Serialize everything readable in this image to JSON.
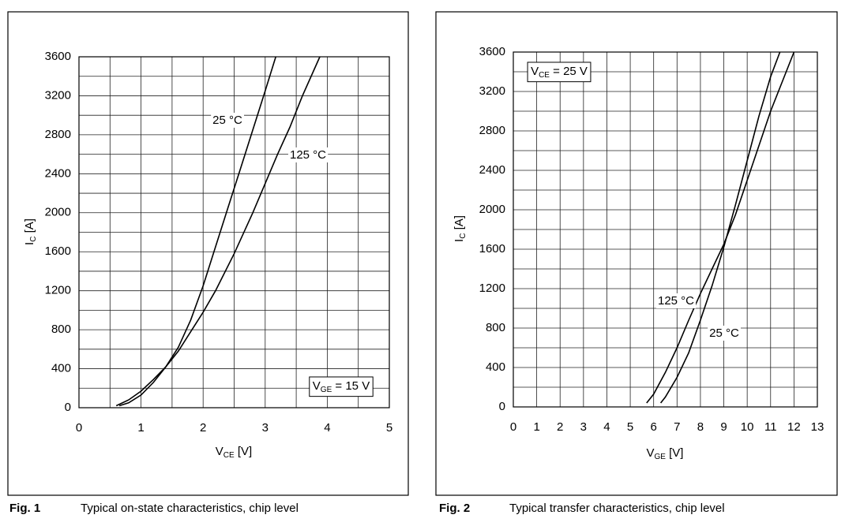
{
  "chart_data": [
    {
      "type": "line",
      "figure_label": "Fig. 1",
      "caption": "Typical on-state characteristics, chip level",
      "xlabel": [
        "V",
        "CE",
        " [V]"
      ],
      "ylabel": [
        "I",
        "C",
        " [A]"
      ],
      "xlim": [
        0,
        5
      ],
      "xticks": [
        0,
        1,
        2,
        3,
        4,
        5
      ],
      "ylim": [
        0,
        3600
      ],
      "yticks": [
        0,
        400,
        800,
        1200,
        1600,
        2000,
        2400,
        2800,
        3200,
        3600
      ],
      "grid": true,
      "minor_grid": [
        "x",
        "y"
      ],
      "annotations": [
        [
          "V",
          "GE",
          " = 15 V"
        ]
      ],
      "series": [
        {
          "name": "25 °C",
          "color": "#000000",
          "x": [
            0.65,
            0.8,
            1.0,
            1.2,
            1.4,
            1.6,
            1.8,
            2.0,
            2.2,
            2.4,
            2.6,
            2.8,
            3.0,
            3.17
          ],
          "values": [
            20,
            50,
            130,
            260,
            420,
            620,
            900,
            1250,
            1650,
            2050,
            2450,
            2850,
            3250,
            3600
          ]
        },
        {
          "name": "125 °C",
          "color": "#000000",
          "x": [
            0.6,
            0.8,
            1.0,
            1.2,
            1.4,
            1.6,
            1.8,
            2.0,
            2.2,
            2.5,
            2.8,
            3.0,
            3.2,
            3.4,
            3.6,
            3.88
          ],
          "values": [
            20,
            80,
            170,
            290,
            420,
            580,
            780,
            980,
            1200,
            1580,
            2000,
            2300,
            2600,
            2880,
            3200,
            3600
          ]
        }
      ]
    },
    {
      "type": "line",
      "figure_label": "Fig. 2",
      "caption": "Typical transfer characteristics, chip level",
      "xlabel": [
        "V",
        "GE",
        "  [V]"
      ],
      "ylabel": [
        "I",
        "C",
        " [A]"
      ],
      "xlim": [
        0,
        13
      ],
      "xticks": [
        0,
        1,
        2,
        3,
        4,
        5,
        6,
        7,
        8,
        9,
        10,
        11,
        12,
        13
      ],
      "ylim": [
        0,
        3600
      ],
      "yticks": [
        0,
        400,
        800,
        1200,
        1600,
        2000,
        2400,
        2800,
        3200,
        3600
      ],
      "grid": true,
      "minor_grid": [
        "y"
      ],
      "annotations": [
        [
          "V",
          "CE",
          " = 25 V"
        ]
      ],
      "series": [
        {
          "name": "25 °C",
          "color": "#000000",
          "x": [
            6.3,
            6.5,
            7.0,
            7.5,
            8.0,
            8.5,
            9.0,
            9.5,
            10.0,
            10.5,
            11.0,
            11.4
          ],
          "values": [
            40,
            100,
            300,
            550,
            880,
            1230,
            1620,
            2050,
            2500,
            2950,
            3350,
            3600
          ]
        },
        {
          "name": "125 °C",
          "color": "#000000",
          "x": [
            5.7,
            6.0,
            6.5,
            7.0,
            7.5,
            8.0,
            8.5,
            9.0,
            9.5,
            10.0,
            10.5,
            11.0,
            11.5,
            12.0
          ],
          "values": [
            40,
            130,
            350,
            600,
            880,
            1150,
            1400,
            1650,
            1950,
            2300,
            2650,
            3000,
            3300,
            3600
          ]
        }
      ]
    }
  ]
}
